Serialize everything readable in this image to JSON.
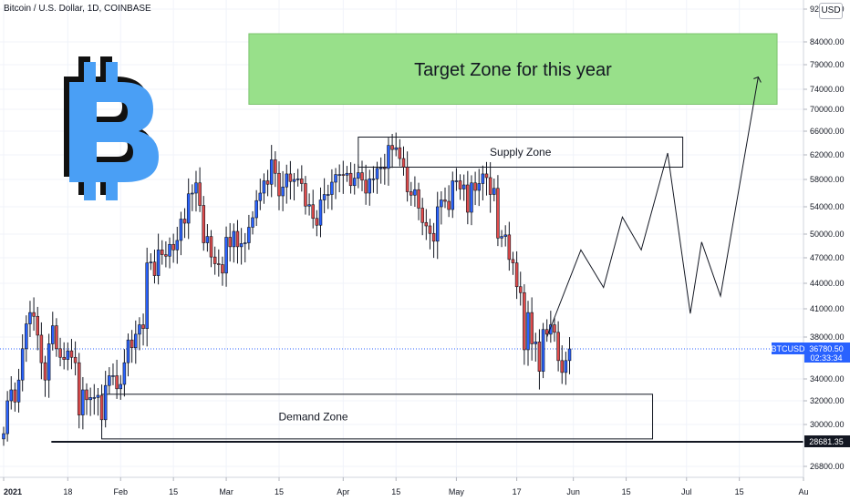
{
  "header": {
    "symbol_title": "Bitcoin / U.S. Dollar, 1D, COINBASE",
    "currency": "USD"
  },
  "price_tag": {
    "ticker": "BTCUSD",
    "price": "36780.50",
    "countdown": "02:33:34",
    "line_label": "28681.35"
  },
  "colors": {
    "up": "#2962ff",
    "down": "#e04b4b",
    "target_fill": "#98e08a",
    "bitcoin_logo": "#4a9ff5"
  },
  "icons": {
    "logo": "bitcoin-logo-icon"
  },
  "chart_data": {
    "type": "candlestick",
    "title": "Bitcoin / U.S. Dollar, 1D, COINBASE",
    "y_axis": {
      "ylim": [
        25500,
        93000
      ],
      "ticks": [
        92000,
        84000,
        79000,
        74000,
        70000,
        66000,
        62000,
        58000,
        54000,
        50000,
        47000,
        44000,
        41000,
        38000,
        34000,
        32000,
        30000,
        26800
      ],
      "tick_labels": [
        "92000.00",
        "84000.00",
        "79000.00",
        "74000.00",
        "70000.00",
        "66000.00",
        "62000.00",
        "58000.00",
        "54000.00",
        "50000.00",
        "47000.00",
        "44000.00",
        "41000.00",
        "38000.00",
        "34000.00",
        "32000.00",
        "30000.00",
        "26800.00"
      ]
    },
    "x_axis": {
      "range": [
        "2021-01-01",
        "2021-08-01"
      ],
      "tick_labels": [
        {
          "label": "2021",
          "date": "2021-01-01"
        },
        {
          "label": "18",
          "date": "2021-01-18"
        },
        {
          "label": "Feb",
          "date": "2021-02-01"
        },
        {
          "label": "15",
          "date": "2021-02-15"
        },
        {
          "label": "Mar",
          "date": "2021-03-01"
        },
        {
          "label": "15",
          "date": "2021-03-15"
        },
        {
          "label": "Apr",
          "date": "2021-04-01"
        },
        {
          "label": "15",
          "date": "2021-04-15"
        },
        {
          "label": "May",
          "date": "2021-05-01"
        },
        {
          "label": "17",
          "date": "2021-05-17"
        },
        {
          "label": "Jun",
          "date": "2021-06-01"
        },
        {
          "label": "15",
          "date": "2021-06-15"
        },
        {
          "label": "Jul",
          "date": "2021-07-01"
        },
        {
          "label": "15",
          "date": "2021-07-15"
        },
        {
          "label": "Au",
          "date": "2021-08-01"
        }
      ]
    },
    "price_series": [
      {
        "date": "2021-01-01",
        "close": 29300
      },
      {
        "date": "2021-01-02",
        "close": 32000
      },
      {
        "date": "2021-01-03",
        "close": 33000
      },
      {
        "date": "2021-01-04",
        "close": 31900
      },
      {
        "date": "2021-01-05",
        "close": 33900
      },
      {
        "date": "2021-01-06",
        "close": 36800
      },
      {
        "date": "2021-01-07",
        "close": 39400
      },
      {
        "date": "2021-01-08",
        "close": 40600
      },
      {
        "date": "2021-01-09",
        "close": 40200
      },
      {
        "date": "2021-01-10",
        "close": 38200
      },
      {
        "date": "2021-01-11",
        "close": 35500
      },
      {
        "date": "2021-01-12",
        "close": 33900
      },
      {
        "date": "2021-01-13",
        "close": 37300
      },
      {
        "date": "2021-01-14",
        "close": 39200
      },
      {
        "date": "2021-01-15",
        "close": 36800
      },
      {
        "date": "2021-01-16",
        "close": 36000
      },
      {
        "date": "2021-01-17",
        "close": 35800
      },
      {
        "date": "2021-01-18",
        "close": 36600
      },
      {
        "date": "2021-01-19",
        "close": 36000
      },
      {
        "date": "2021-01-20",
        "close": 35500
      },
      {
        "date": "2021-01-21",
        "close": 30800
      },
      {
        "date": "2021-01-22",
        "close": 33000
      },
      {
        "date": "2021-01-23",
        "close": 32100
      },
      {
        "date": "2021-01-24",
        "close": 32300
      },
      {
        "date": "2021-01-25",
        "close": 32300
      },
      {
        "date": "2021-01-26",
        "close": 32500
      },
      {
        "date": "2021-01-27",
        "close": 30400
      },
      {
        "date": "2021-01-28",
        "close": 33400
      },
      {
        "date": "2021-01-29",
        "close": 34300
      },
      {
        "date": "2021-01-30",
        "close": 34300
      },
      {
        "date": "2021-01-31",
        "close": 33100
      },
      {
        "date": "2021-02-01",
        "close": 33500
      },
      {
        "date": "2021-02-02",
        "close": 35500
      },
      {
        "date": "2021-02-03",
        "close": 37700
      },
      {
        "date": "2021-02-04",
        "close": 36900
      },
      {
        "date": "2021-02-05",
        "close": 38300
      },
      {
        "date": "2021-02-06",
        "close": 39300
      },
      {
        "date": "2021-02-07",
        "close": 38900
      },
      {
        "date": "2021-02-08",
        "close": 46400
      },
      {
        "date": "2021-02-09",
        "close": 46500
      },
      {
        "date": "2021-02-10",
        "close": 44900
      },
      {
        "date": "2021-02-11",
        "close": 48000
      },
      {
        "date": "2021-02-12",
        "close": 47400
      },
      {
        "date": "2021-02-13",
        "close": 47200
      },
      {
        "date": "2021-02-14",
        "close": 48700
      },
      {
        "date": "2021-02-15",
        "close": 48000
      },
      {
        "date": "2021-02-16",
        "close": 49200
      },
      {
        "date": "2021-02-17",
        "close": 52200
      },
      {
        "date": "2021-02-18",
        "close": 51600
      },
      {
        "date": "2021-02-19",
        "close": 55900
      },
      {
        "date": "2021-02-20",
        "close": 56000
      },
      {
        "date": "2021-02-21",
        "close": 57500
      },
      {
        "date": "2021-02-22",
        "close": 54200
      },
      {
        "date": "2021-02-23",
        "close": 48900
      },
      {
        "date": "2021-02-24",
        "close": 49700
      },
      {
        "date": "2021-02-25",
        "close": 47100
      },
      {
        "date": "2021-02-26",
        "close": 46300
      },
      {
        "date": "2021-02-27",
        "close": 46200
      },
      {
        "date": "2021-02-28",
        "close": 45200
      },
      {
        "date": "2021-03-01",
        "close": 49600
      },
      {
        "date": "2021-03-02",
        "close": 48400
      },
      {
        "date": "2021-03-03",
        "close": 50400
      },
      {
        "date": "2021-03-04",
        "close": 48400
      },
      {
        "date": "2021-03-05",
        "close": 48800
      },
      {
        "date": "2021-03-06",
        "close": 48900
      },
      {
        "date": "2021-03-07",
        "close": 51000
      },
      {
        "date": "2021-03-08",
        "close": 52400
      },
      {
        "date": "2021-03-09",
        "close": 54900
      },
      {
        "date": "2021-03-10",
        "close": 56000
      },
      {
        "date": "2021-03-11",
        "close": 57800
      },
      {
        "date": "2021-03-12",
        "close": 57300
      },
      {
        "date": "2021-03-13",
        "close": 61200
      },
      {
        "date": "2021-03-14",
        "close": 59000
      },
      {
        "date": "2021-03-15",
        "close": 55600
      },
      {
        "date": "2021-03-16",
        "close": 56900
      },
      {
        "date": "2021-03-17",
        "close": 58900
      },
      {
        "date": "2021-03-18",
        "close": 57700
      },
      {
        "date": "2021-03-19",
        "close": 58000
      },
      {
        "date": "2021-03-20",
        "close": 58100
      },
      {
        "date": "2021-03-21",
        "close": 57400
      },
      {
        "date": "2021-03-22",
        "close": 54100
      },
      {
        "date": "2021-03-23",
        "close": 54300
      },
      {
        "date": "2021-03-24",
        "close": 52300
      },
      {
        "date": "2021-03-25",
        "close": 51300
      },
      {
        "date": "2021-03-26",
        "close": 55000
      },
      {
        "date": "2021-03-27",
        "close": 55800
      },
      {
        "date": "2021-03-28",
        "close": 55800
      },
      {
        "date": "2021-03-29",
        "close": 57600
      },
      {
        "date": "2021-03-30",
        "close": 58800
      },
      {
        "date": "2021-03-31",
        "close": 58800
      },
      {
        "date": "2021-04-01",
        "close": 58700
      },
      {
        "date": "2021-04-02",
        "close": 59000
      },
      {
        "date": "2021-04-03",
        "close": 57100
      },
      {
        "date": "2021-04-04",
        "close": 58200
      },
      {
        "date": "2021-04-05",
        "close": 59100
      },
      {
        "date": "2021-04-06",
        "close": 57900
      },
      {
        "date": "2021-04-07",
        "close": 56000
      },
      {
        "date": "2021-04-08",
        "close": 58100
      },
      {
        "date": "2021-04-09",
        "close": 58100
      },
      {
        "date": "2021-04-10",
        "close": 59800
      },
      {
        "date": "2021-04-11",
        "close": 59900
      },
      {
        "date": "2021-04-12",
        "close": 59800
      },
      {
        "date": "2021-04-13",
        "close": 63600
      },
      {
        "date": "2021-04-14",
        "close": 62900
      },
      {
        "date": "2021-04-15",
        "close": 63200
      },
      {
        "date": "2021-04-16",
        "close": 61400
      },
      {
        "date": "2021-04-17",
        "close": 60000
      },
      {
        "date": "2021-04-18",
        "close": 56200
      },
      {
        "date": "2021-04-19",
        "close": 55700
      },
      {
        "date": "2021-04-20",
        "close": 56500
      },
      {
        "date": "2021-04-21",
        "close": 53800
      },
      {
        "date": "2021-04-22",
        "close": 51700
      },
      {
        "date": "2021-04-23",
        "close": 51200
      },
      {
        "date": "2021-04-24",
        "close": 50100
      },
      {
        "date": "2021-04-25",
        "close": 49100
      },
      {
        "date": "2021-04-26",
        "close": 54000
      },
      {
        "date": "2021-04-27",
        "close": 55000
      },
      {
        "date": "2021-04-28",
        "close": 54800
      },
      {
        "date": "2021-04-29",
        "close": 53600
      },
      {
        "date": "2021-04-30",
        "close": 57800
      },
      {
        "date": "2021-05-01",
        "close": 57800
      },
      {
        "date": "2021-05-02",
        "close": 56600
      },
      {
        "date": "2021-05-03",
        "close": 57200
      },
      {
        "date": "2021-05-04",
        "close": 53200
      },
      {
        "date": "2021-05-05",
        "close": 57500
      },
      {
        "date": "2021-05-06",
        "close": 56400
      },
      {
        "date": "2021-05-07",
        "close": 57400
      },
      {
        "date": "2021-05-08",
        "close": 58900
      },
      {
        "date": "2021-05-09",
        "close": 58300
      },
      {
        "date": "2021-05-10",
        "close": 55800
      },
      {
        "date": "2021-05-11",
        "close": 56700
      },
      {
        "date": "2021-05-12",
        "close": 49500
      },
      {
        "date": "2021-05-13",
        "close": 49700
      },
      {
        "date": "2021-05-14",
        "close": 49900
      },
      {
        "date": "2021-05-15",
        "close": 46800
      },
      {
        "date": "2021-05-16",
        "close": 46400
      },
      {
        "date": "2021-05-17",
        "close": 43600
      },
      {
        "date": "2021-05-18",
        "close": 42900
      },
      {
        "date": "2021-05-19",
        "close": 36700
      },
      {
        "date": "2021-05-20",
        "close": 40600
      },
      {
        "date": "2021-05-21",
        "close": 37300
      },
      {
        "date": "2021-05-22",
        "close": 37500
      },
      {
        "date": "2021-05-23",
        "close": 34700
      },
      {
        "date": "2021-05-24",
        "close": 38800
      },
      {
        "date": "2021-05-25",
        "close": 38300
      },
      {
        "date": "2021-05-26",
        "close": 39300
      },
      {
        "date": "2021-05-27",
        "close": 38500
      },
      {
        "date": "2021-05-28",
        "close": 35700
      },
      {
        "date": "2021-05-29",
        "close": 34600
      },
      {
        "date": "2021-05-30",
        "close": 35700
      },
      {
        "date": "2021-05-31",
        "close": 36780
      }
    ],
    "projection_path": [
      {
        "date": "2021-05-25",
        "price": 38000
      },
      {
        "date": "2021-06-03",
        "price": 48000
      },
      {
        "date": "2021-06-09",
        "price": 43500
      },
      {
        "date": "2021-06-14",
        "price": 52500
      },
      {
        "date": "2021-06-19",
        "price": 48000
      },
      {
        "date": "2021-06-26",
        "price": 62300
      },
      {
        "date": "2021-07-02",
        "price": 40500
      },
      {
        "date": "2021-07-05",
        "price": 49000
      },
      {
        "date": "2021-07-10",
        "price": 42500
      },
      {
        "date": "2021-07-20",
        "price": 76500
      }
    ],
    "zones": [
      {
        "label": "Target Zone for this year",
        "type": "target",
        "from": "2021-03-07",
        "to": "2021-07-25",
        "low": 71000,
        "high": 86000
      },
      {
        "label": "Supply Zone",
        "type": "supply",
        "from": "2021-04-05",
        "to": "2021-06-30",
        "low": 60000,
        "high": 65000
      },
      {
        "label": "Demand Zone",
        "type": "demand",
        "from": "2021-01-27",
        "to": "2021-06-22",
        "low": 28900,
        "high": 32600
      }
    ],
    "horizontal_level": 28681.35,
    "last_price": 36780.5
  }
}
